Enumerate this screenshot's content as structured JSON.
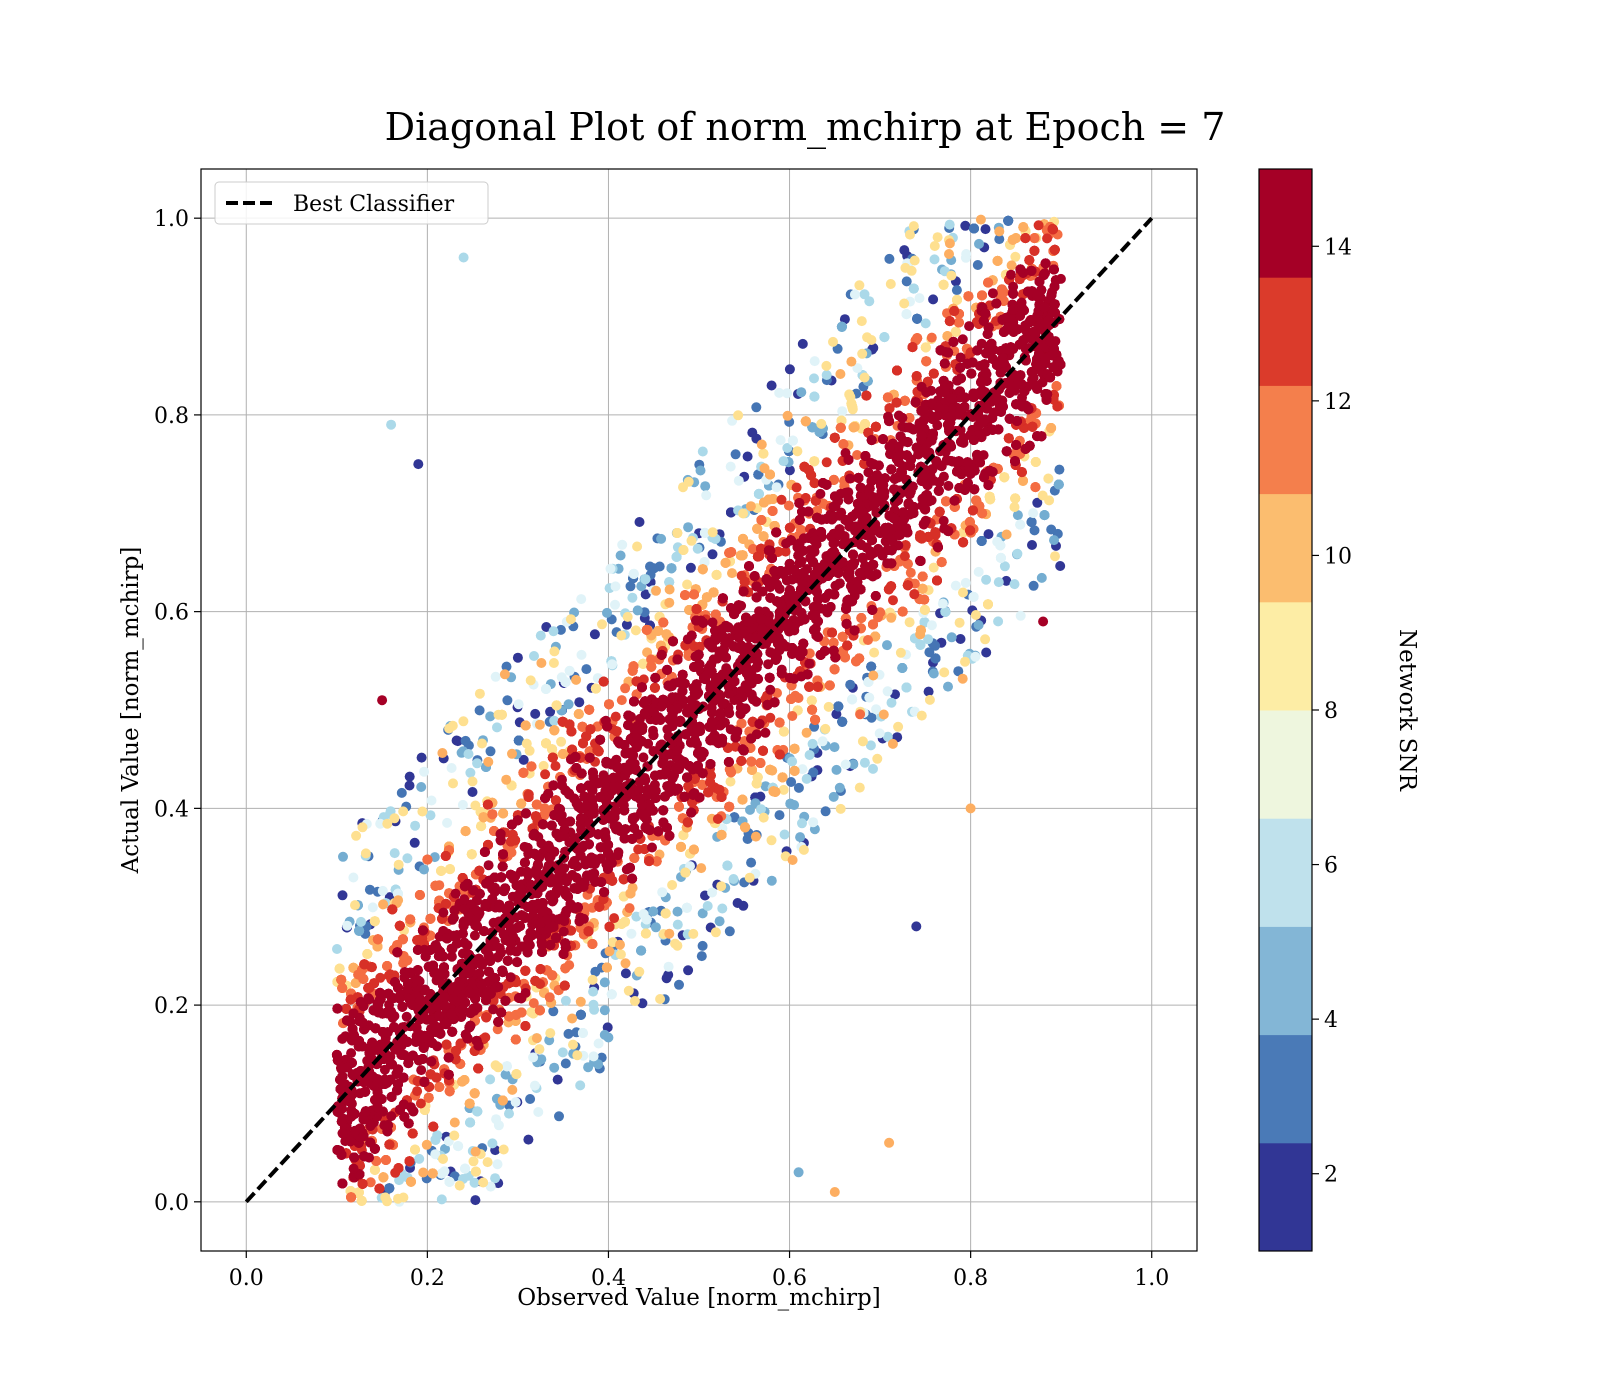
{
  "chart_data": {
    "type": "scatter",
    "title": "Diagonal Plot of norm_mchirp at Epoch = 7",
    "xlabel": "Observed Value [norm_mchirp]",
    "ylabel": "Actual Value [norm_mchirp]",
    "xlim": [
      -0.05,
      1.05
    ],
    "ylim": [
      -0.05,
      1.05
    ],
    "x_ticks": [
      "0.0",
      "0.2",
      "0.4",
      "0.6",
      "0.8",
      "1.0"
    ],
    "x_tick_values": [
      0.0,
      0.2,
      0.4,
      0.6,
      0.8,
      1.0
    ],
    "y_ticks": [
      "0.0",
      "0.2",
      "0.4",
      "0.6",
      "0.8",
      "1.0"
    ],
    "y_tick_values": [
      0.0,
      0.2,
      0.4,
      0.6,
      0.8,
      1.0
    ],
    "grid": true,
    "legend": {
      "position": "upper-left",
      "entries": [
        "Best Classifier"
      ]
    },
    "reference_line": {
      "name": "Best Classifier",
      "x": [
        0.0,
        1.0
      ],
      "y": [
        0.0,
        1.0
      ],
      "style": "dashed",
      "color": "#000000"
    },
    "colorbar": {
      "label": "Network SNR",
      "range": [
        1,
        15
      ],
      "ticks": [
        "2",
        "4",
        "6",
        "8",
        "10",
        "12",
        "14"
      ],
      "tick_values": [
        2,
        4,
        6,
        8,
        10,
        12,
        14
      ],
      "levels": [
        "#313695",
        "#4575b4",
        "#74add1",
        "#abd9e9",
        "#e0f3f8",
        "#fee090",
        "#fdae61",
        "#f46d43",
        "#d73027",
        "#a50026"
      ],
      "band_colors_display": [
        "#313695",
        "#4a7ab7",
        "#83b6d6",
        "#bfe1ec",
        "#eef6de",
        "#fdeda5",
        "#fbbd6f",
        "#f47f4c",
        "#db3b2b",
        "#a50026"
      ]
    },
    "point_distribution": {
      "n_points_rendered": 14000,
      "x_range": [
        0.1,
        0.9
      ],
      "y_range": [
        0.0,
        1.0
      ],
      "trend": "y ≈ x with spread ±0.2; high SNR (≥14) concentrated near diagonal, low SNR above-left and below-right",
      "outliers": [
        {
          "x": 0.19,
          "y": 0.75,
          "snr": 1.5
        },
        {
          "x": 0.74,
          "y": 0.28,
          "snr": 1.5
        },
        {
          "x": 0.16,
          "y": 0.79,
          "snr": 5.5
        },
        {
          "x": 0.24,
          "y": 0.96,
          "snr": 5.5
        },
        {
          "x": 0.88,
          "y": 0.59,
          "snr": 15
        },
        {
          "x": 0.15,
          "y": 0.51,
          "snr": 15
        },
        {
          "x": 0.71,
          "y": 0.06,
          "snr": 9.5
        },
        {
          "x": 0.8,
          "y": 0.4,
          "snr": 9.5
        },
        {
          "x": 0.65,
          "y": 0.01,
          "snr": 10.5
        },
        {
          "x": 0.61,
          "y": 0.03,
          "snr": 4.5
        }
      ]
    }
  }
}
